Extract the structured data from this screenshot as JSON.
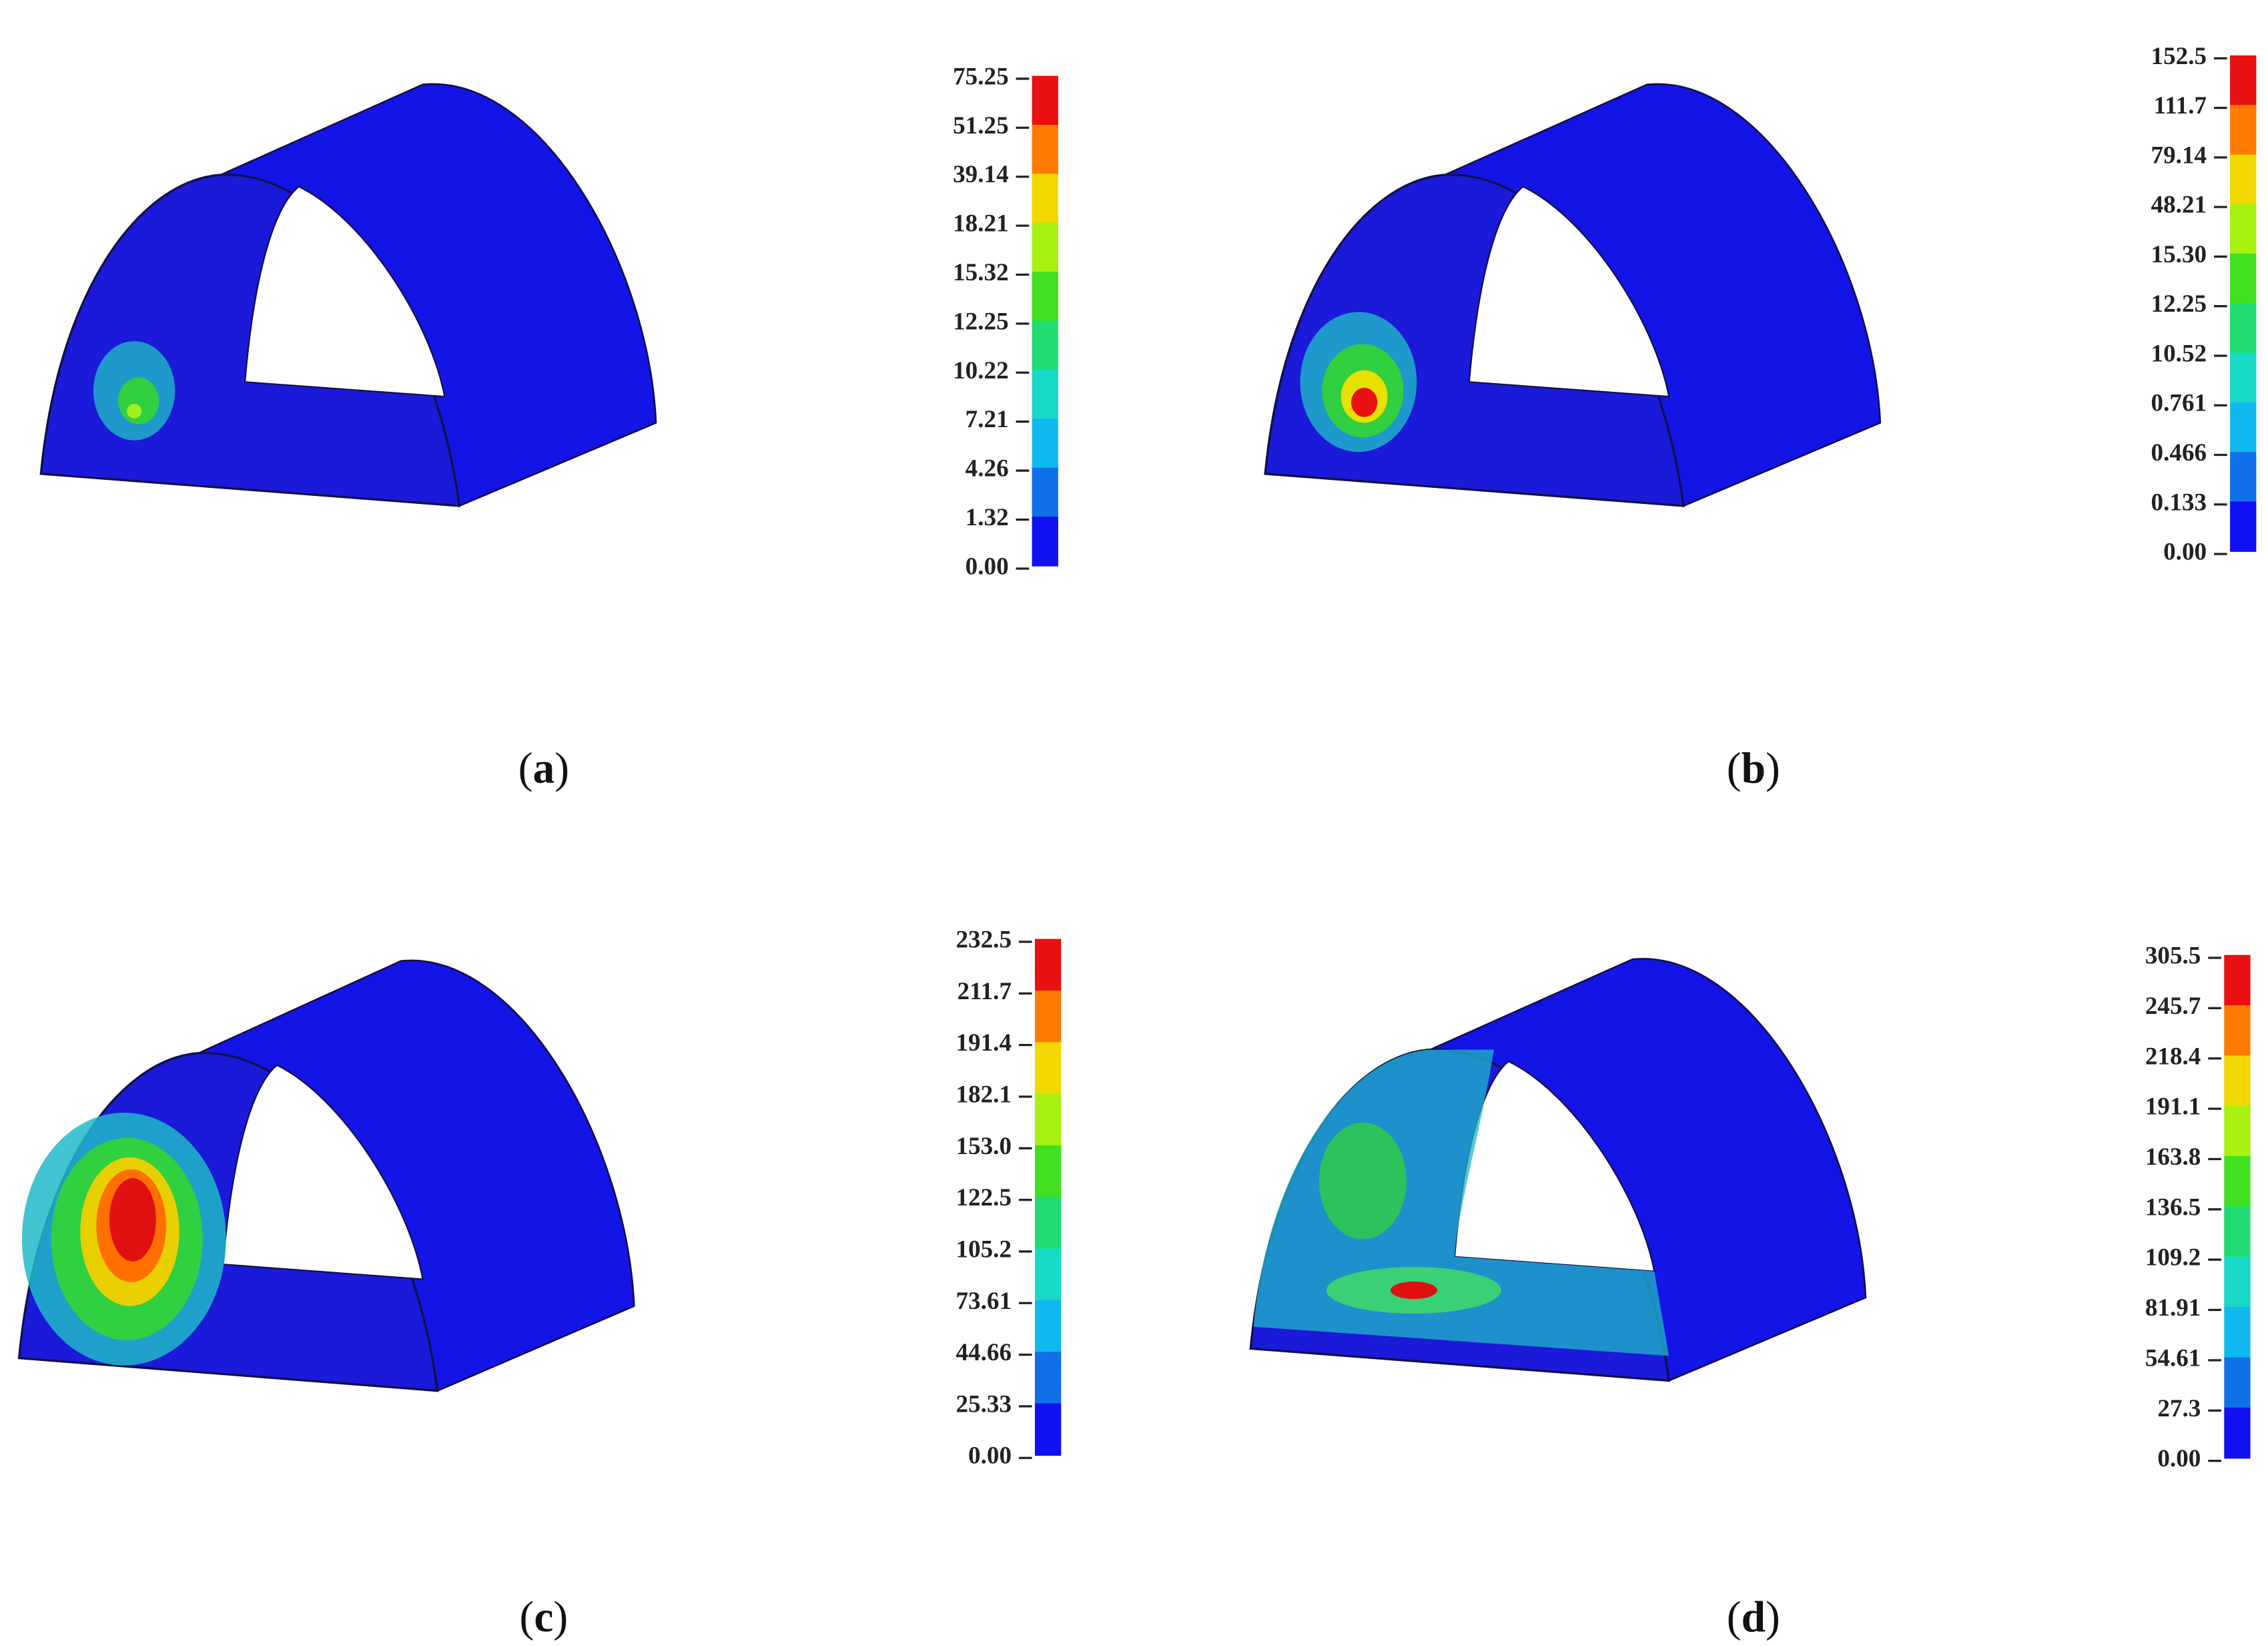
{
  "panels": [
    {
      "caption": [
        "(",
        "a",
        ")"
      ],
      "legend": [
        "75.25",
        "51.25",
        "39.14",
        "18.21",
        "15.32",
        "12.25",
        "10.22",
        "7.21",
        "4.26",
        "1.32",
        "0.00"
      ]
    },
    {
      "caption": [
        "(",
        "b",
        ")"
      ],
      "legend": [
        "152.5",
        "111.7",
        "79.14",
        "48.21",
        "15.30",
        "12.25",
        "10.52",
        "0.761",
        "0.466",
        "0.133",
        "0.00"
      ]
    },
    {
      "caption": [
        "(",
        "c",
        ")"
      ],
      "legend": [
        "232.5",
        "211.7",
        "191.4",
        "182.1",
        "153.0",
        "122.5",
        "105.2",
        "73.61",
        "44.66",
        "25.33",
        "0.00"
      ]
    },
    {
      "caption": [
        "(",
        "d",
        ")"
      ],
      "legend": [
        "305.5",
        "245.7",
        "218.4",
        "191.1",
        "163.8",
        "136.5",
        "109.2",
        "81.91",
        "54.61",
        "27.3",
        "0.00"
      ]
    }
  ]
}
